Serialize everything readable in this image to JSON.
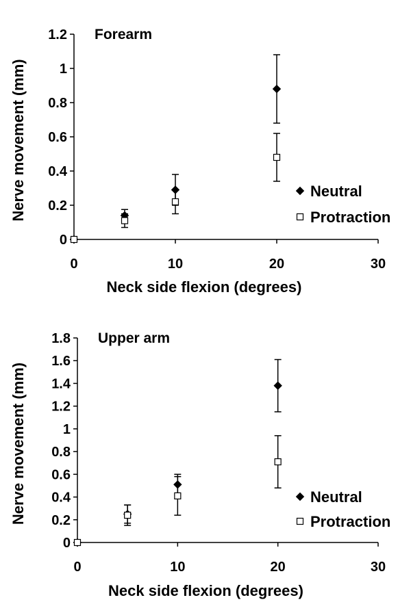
{
  "chart_data": [
    {
      "type": "scatter",
      "title": "Forearm",
      "xlabel": "Neck side flexion (degrees)",
      "ylabel": "Nerve movement (mm)",
      "xlim": [
        0,
        30
      ],
      "ylim": [
        0,
        1.2
      ],
      "xticks": [
        "0",
        "10",
        "20",
        "30"
      ],
      "yticks": [
        "0",
        "0.2",
        "0.4",
        "0.6",
        "0.8",
        "1",
        "1.2"
      ],
      "grid": false,
      "legend_position": "right",
      "series": [
        {
          "name": "Neutral",
          "marker": "filled-diamond",
          "color": "#000000",
          "points": [
            {
              "x": 0,
              "y": 0,
              "err": 0
            },
            {
              "x": 5,
              "y": 0.14,
              "err": 0.035
            },
            {
              "x": 10,
              "y": 0.29,
              "err": 0.09
            },
            {
              "x": 20,
              "y": 0.88,
              "err": 0.2
            }
          ]
        },
        {
          "name": "Protraction",
          "marker": "open-square",
          "color": "#000000",
          "points": [
            {
              "x": 0,
              "y": 0,
              "err": 0
            },
            {
              "x": 5,
              "y": 0.11,
              "err": 0.04
            },
            {
              "x": 10,
              "y": 0.22,
              "err": 0.07
            },
            {
              "x": 20,
              "y": 0.48,
              "err": 0.14
            }
          ]
        }
      ]
    },
    {
      "type": "scatter",
      "title": "Upper arm",
      "xlabel": "Neck side flexion (degrees)",
      "ylabel": "Nerve movement (mm)",
      "xlim": [
        0,
        30
      ],
      "ylim": [
        0,
        1.8
      ],
      "xticks": [
        "0",
        "10",
        "20",
        "30"
      ],
      "yticks": [
        "0",
        "0.2",
        "0.4",
        "0.6",
        "0.8",
        "1",
        "1.2",
        "1.4",
        "1.6",
        "1.8"
      ],
      "grid": false,
      "legend_position": "right",
      "series": [
        {
          "name": "Neutral",
          "marker": "filled-diamond",
          "color": "#000000",
          "points": [
            {
              "x": 0,
              "y": 0,
              "err": 0
            },
            {
              "x": 5,
              "y": 0.25,
              "err": 0.08
            },
            {
              "x": 10,
              "y": 0.51,
              "err": 0.09
            },
            {
              "x": 20,
              "y": 1.38,
              "err": 0.23
            }
          ]
        },
        {
          "name": "Protraction",
          "marker": "open-square",
          "color": "#000000",
          "points": [
            {
              "x": 0,
              "y": 0,
              "err": 0
            },
            {
              "x": 5,
              "y": 0.24,
              "err": 0.09
            },
            {
              "x": 10,
              "y": 0.41,
              "err": 0.17
            },
            {
              "x": 20,
              "y": 0.71,
              "err": 0.23
            }
          ]
        }
      ]
    }
  ]
}
